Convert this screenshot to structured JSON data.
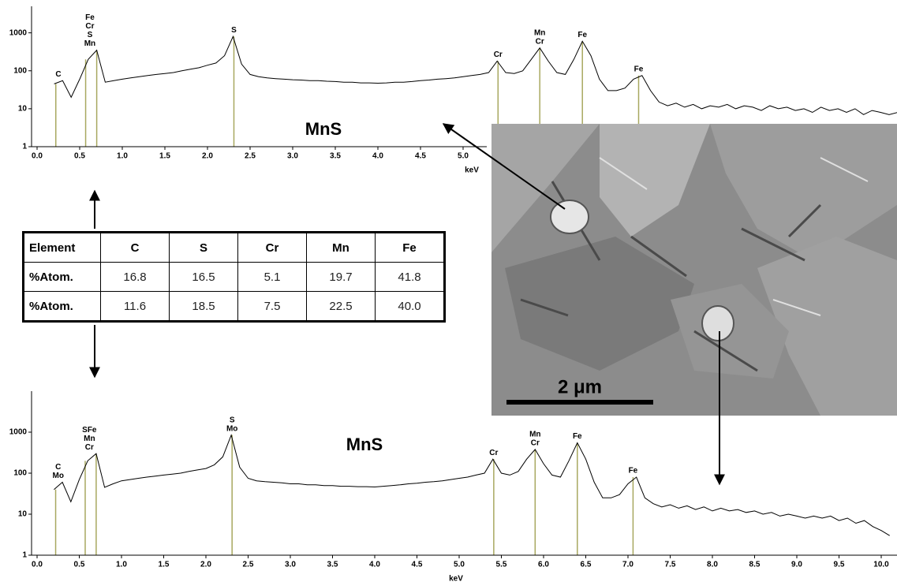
{
  "chart_data": [
    {
      "type": "line",
      "title": "MnS",
      "xlabel": "keV",
      "log_y": true,
      "color": "#000000",
      "marker_color": "#a8a860",
      "xlim": [
        0,
        10.1
      ],
      "ylim": [
        1,
        5000
      ],
      "yticks": [
        1,
        10,
        100,
        1000
      ],
      "xticks": [
        {
          "value": 0,
          "label": "0.0"
        },
        0.5,
        {
          "value": 1,
          "label": "1.0"
        },
        1.5,
        {
          "value": 2,
          "label": "2.0"
        },
        2.5,
        {
          "value": 3,
          "label": "3.0"
        },
        3.5,
        {
          "value": 4,
          "label": "4.0"
        },
        4.5,
        {
          "value": 5,
          "label": "5.0"
        }
      ],
      "x": [
        0.2,
        0.3,
        0.4,
        0.5,
        0.6,
        0.7,
        0.8,
        0.9,
        1.0,
        1.1,
        1.2,
        1.3,
        1.4,
        1.5,
        1.6,
        1.7,
        1.8,
        1.9,
        2.0,
        2.1,
        2.2,
        2.3,
        2.4,
        2.5,
        2.6,
        2.7,
        2.8,
        2.9,
        3.0,
        3.1,
        3.2,
        3.3,
        3.4,
        3.5,
        3.6,
        3.7,
        3.8,
        3.9,
        4.0,
        4.1,
        4.2,
        4.3,
        4.4,
        4.5,
        4.6,
        4.7,
        4.8,
        4.9,
        5.0,
        5.1,
        5.2,
        5.3,
        5.4,
        5.5,
        5.6,
        5.7,
        5.8,
        5.9,
        6.0,
        6.1,
        6.2,
        6.3,
        6.4,
        6.5,
        6.6,
        6.7,
        6.8,
        6.9,
        7.0,
        7.1,
        7.2,
        7.3,
        7.4,
        7.5,
        7.6,
        7.7,
        7.8,
        7.9,
        8.0,
        8.1,
        8.2,
        8.3,
        8.4,
        8.5,
        8.6,
        8.7,
        8.8,
        8.9,
        9.0,
        9.1,
        9.2,
        9.3,
        9.4,
        9.5,
        9.6,
        9.7,
        9.8,
        9.9,
        10.0,
        10.1
      ],
      "values": [
        45,
        55,
        20,
        60,
        200,
        350,
        50,
        55,
        60,
        65,
        70,
        75,
        80,
        85,
        90,
        100,
        110,
        120,
        140,
        160,
        250,
        800,
        150,
        80,
        70,
        65,
        62,
        60,
        58,
        57,
        55,
        55,
        53,
        52,
        50,
        50,
        48,
        48,
        47,
        48,
        50,
        50,
        52,
        55,
        57,
        60,
        62,
        65,
        70,
        75,
        80,
        90,
        180,
        90,
        85,
        100,
        200,
        400,
        180,
        90,
        80,
        200,
        600,
        250,
        60,
        30,
        30,
        35,
        60,
        75,
        30,
        15,
        12,
        14,
        11,
        13,
        10,
        12,
        11,
        13,
        10,
        12,
        11,
        9,
        12,
        10,
        11,
        9,
        10,
        8,
        11,
        9,
        10,
        8,
        10,
        7,
        9,
        8,
        7,
        8
      ],
      "markers": [
        0.22,
        0.57,
        0.7,
        2.31,
        5.41,
        5.9,
        6.4,
        7.06
      ],
      "annotations": [
        {
          "x": 0.25,
          "lines": [
            "C"
          ]
        },
        {
          "x": 0.62,
          "lines": [
            "Fe",
            "Cr",
            "S",
            "Mn"
          ]
        },
        {
          "x": 2.31,
          "lines": [
            "S"
          ]
        },
        {
          "x": 5.41,
          "lines": [
            "Cr"
          ]
        },
        {
          "x": 5.9,
          "lines": [
            "Mn",
            "Cr"
          ]
        },
        {
          "x": 6.4,
          "lines": [
            "Fe"
          ]
        },
        {
          "x": 7.06,
          "lines": [
            "Fe"
          ]
        }
      ]
    },
    {
      "type": "line",
      "title": "MnS",
      "xlabel": "keV",
      "log_y": true,
      "color": "#000000",
      "marker_color": "#a8a860",
      "xlim": [
        0,
        10.2
      ],
      "ylim": [
        1,
        10000
      ],
      "yticks": [
        1,
        10,
        100,
        1000
      ],
      "xticks": [
        {
          "value": 0,
          "label": "0.0"
        },
        0.5,
        {
          "value": 1,
          "label": "1.0"
        },
        1.5,
        {
          "value": 2,
          "label": "2.0"
        },
        2.5,
        {
          "value": 3,
          "label": "3.0"
        },
        3.5,
        {
          "value": 4,
          "label": "4.0"
        },
        4.5,
        {
          "value": 5,
          "label": "5.0"
        },
        5.5,
        {
          "value": 6,
          "label": "6.0"
        },
        6.5,
        {
          "value": 7,
          "label": "7.0"
        },
        7.5,
        {
          "value": 8,
          "label": "8.0"
        },
        8.5,
        {
          "value": 9,
          "label": "9.0"
        },
        9.5,
        {
          "value": 10,
          "label": "10.0"
        }
      ],
      "x": [
        0.2,
        0.3,
        0.4,
        0.5,
        0.6,
        0.7,
        0.8,
        0.9,
        1.0,
        1.1,
        1.2,
        1.3,
        1.4,
        1.5,
        1.6,
        1.7,
        1.8,
        1.9,
        2.0,
        2.1,
        2.2,
        2.3,
        2.4,
        2.5,
        2.6,
        2.7,
        2.8,
        2.9,
        3.0,
        3.1,
        3.2,
        3.3,
        3.4,
        3.5,
        3.6,
        3.7,
        3.8,
        3.9,
        4.0,
        4.1,
        4.2,
        4.3,
        4.4,
        4.5,
        4.6,
        4.7,
        4.8,
        4.9,
        5.0,
        5.1,
        5.2,
        5.3,
        5.4,
        5.5,
        5.6,
        5.7,
        5.8,
        5.9,
        6.0,
        6.1,
        6.2,
        6.3,
        6.4,
        6.5,
        6.6,
        6.7,
        6.8,
        6.9,
        7.0,
        7.1,
        7.2,
        7.3,
        7.4,
        7.5,
        7.6,
        7.7,
        7.8,
        7.9,
        8.0,
        8.1,
        8.2,
        8.3,
        8.4,
        8.5,
        8.6,
        8.7,
        8.8,
        8.9,
        9.0,
        9.1,
        9.2,
        9.3,
        9.4,
        9.5,
        9.6,
        9.7,
        9.8,
        9.9,
        10.0,
        10.1
      ],
      "values": [
        40,
        60,
        20,
        70,
        200,
        300,
        45,
        55,
        65,
        70,
        75,
        80,
        85,
        90,
        95,
        100,
        110,
        120,
        130,
        160,
        250,
        850,
        140,
        75,
        65,
        62,
        60,
        58,
        55,
        55,
        52,
        52,
        50,
        50,
        48,
        48,
        47,
        47,
        46,
        48,
        50,
        52,
        55,
        57,
        60,
        62,
        65,
        70,
        75,
        80,
        90,
        100,
        220,
        100,
        90,
        110,
        220,
        380,
        170,
        90,
        80,
        200,
        550,
        220,
        60,
        25,
        25,
        30,
        55,
        80,
        25,
        18,
        15,
        17,
        14,
        16,
        13,
        15,
        12,
        14,
        12,
        13,
        11,
        12,
        10,
        11,
        9,
        10,
        9,
        8,
        9,
        8,
        9,
        7,
        8,
        6,
        7,
        5,
        4,
        3
      ],
      "markers": [
        0.22,
        0.57,
        0.7,
        2.31,
        5.41,
        5.9,
        6.4,
        7.06
      ],
      "annotations": [
        {
          "x": 0.25,
          "lines": [
            "C",
            "Mo"
          ]
        },
        {
          "x": 0.62,
          "lines": [
            "SFe",
            "Mn",
            "Cr"
          ]
        },
        {
          "x": 2.31,
          "lines": [
            "S",
            "Mo"
          ]
        },
        {
          "x": 5.41,
          "lines": [
            "Cr"
          ]
        },
        {
          "x": 5.9,
          "lines": [
            "Mn",
            "Cr"
          ]
        },
        {
          "x": 6.4,
          "lines": [
            "Fe"
          ]
        },
        {
          "x": 7.06,
          "lines": [
            "Fe"
          ]
        }
      ]
    }
  ],
  "table": {
    "header": [
      "Element",
      "C",
      "S",
      "Cr",
      "Mn",
      "Fe"
    ],
    "rows": [
      [
        "%Atom.",
        "16.8",
        "16.5",
        "5.1",
        "19.7",
        "41.8"
      ],
      [
        "%Atom.",
        "11.6",
        "18.5",
        "7.5",
        "22.5",
        "40.0"
      ]
    ]
  },
  "sem": {
    "scale_bar": "2 μm"
  }
}
